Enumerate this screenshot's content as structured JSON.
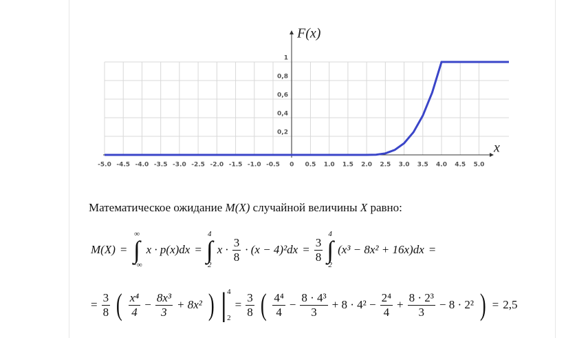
{
  "chart_data": {
    "type": "line",
    "y_label": "F(x)",
    "x_label": "x",
    "x": [
      -5,
      2,
      2.25,
      2.5,
      2.75,
      3,
      3.25,
      3.5,
      3.75,
      4,
      5.8
    ],
    "series": [
      {
        "color": "#3a45c8",
        "values": [
          0,
          0,
          0.002,
          0.016,
          0.053,
          0.125,
          0.244,
          0.422,
          0.67,
          1,
          1
        ]
      }
    ],
    "xlim": [
      -5,
      5.8
    ],
    "ylim": [
      0,
      1
    ],
    "xticks": [
      {
        "value": -5,
        "label": "-5.0"
      },
      -4.5,
      {
        "value": -4,
        "label": "-4.0"
      },
      -3.5,
      {
        "value": -3,
        "label": "-3.0"
      },
      -2.5,
      {
        "value": -2,
        "label": "-2.0"
      },
      -1.5,
      {
        "value": -1,
        "label": "-1.0"
      },
      -0.5,
      0,
      0.5,
      {
        "value": 1,
        "label": "1.0"
      },
      1.5,
      {
        "value": 2,
        "label": "2.0"
      },
      2.5,
      {
        "value": 3,
        "label": "3.0"
      },
      3.5,
      {
        "value": 4,
        "label": "4.0"
      },
      4.5,
      {
        "value": 5,
        "label": "5.0"
      }
    ],
    "yticks": [
      {
        "value": 0.2,
        "label": "0,2"
      },
      {
        "value": 0.4,
        "label": "0,4"
      },
      {
        "value": 0.6,
        "label": "0,6"
      },
      {
        "value": 0.8,
        "label": "0,8"
      },
      1
    ],
    "grid": true
  },
  "paragraph": [
    "Математическое ожидание",
    "M(X)",
    "случайной величины",
    "X",
    "равно:"
  ],
  "formula_1": [
    "M(X)",
    "=",
    "∫",
    "∞",
    "−∞",
    "x · p(x)dx",
    "=",
    "∫",
    "4",
    "2",
    "x ·",
    "3",
    "8",
    "· (x − 4)²dx",
    "=",
    "3",
    "8",
    "∫",
    "4",
    "2",
    "(x³ − 8x² + 16x)dx",
    "="
  ],
  "formula_2": [
    "=",
    "3",
    "8",
    "(",
    "x⁴",
    "4",
    "−",
    "8x³",
    "3",
    "+ 8x²",
    ")",
    "|",
    "4",
    "2",
    "=",
    "3",
    "8",
    "(",
    "4⁴",
    "4",
    "−",
    "8 · 4³",
    "3",
    "+ 8 · 4² −",
    "2⁴",
    "4",
    "+",
    "8 · 2³",
    "3",
    "− 8 · 2²",
    ")",
    "=",
    "2,5"
  ]
}
